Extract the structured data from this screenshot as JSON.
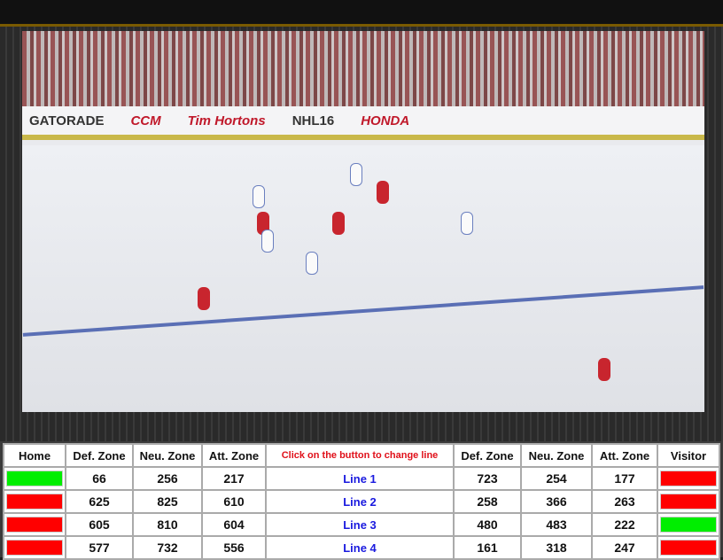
{
  "video": {
    "board_ads": [
      "GATORADE",
      "CCM",
      "Tim Hortons",
      "NHL16",
      "HONDA"
    ]
  },
  "table": {
    "headers": {
      "home": "Home",
      "def_home": "Def. Zone",
      "neu_home": "Neu. Zone",
      "att_home": "Att. Zone",
      "instruction": "Click on the button to change line",
      "def_vis": "Def. Zone",
      "neu_vis": "Neu. Zone",
      "att_vis": "Att. Zone",
      "visitor": "Visitor"
    },
    "colors": {
      "active": "#00ee00",
      "inactive": "#ff0000"
    },
    "rows": [
      {
        "home_active": true,
        "home": [
          66,
          256,
          217
        ],
        "line": "Line 1",
        "visitor": [
          723,
          254,
          177
        ],
        "visitor_active": false
      },
      {
        "home_active": false,
        "home": [
          625,
          825,
          610
        ],
        "line": "Line 2",
        "visitor": [
          258,
          366,
          263
        ],
        "visitor_active": false
      },
      {
        "home_active": false,
        "home": [
          605,
          810,
          604
        ],
        "line": "Line 3",
        "visitor": [
          480,
          483,
          222
        ],
        "visitor_active": true
      },
      {
        "home_active": false,
        "home": [
          577,
          732,
          556
        ],
        "line": "Line 4",
        "visitor": [
          161,
          318,
          247
        ],
        "visitor_active": false
      }
    ]
  }
}
